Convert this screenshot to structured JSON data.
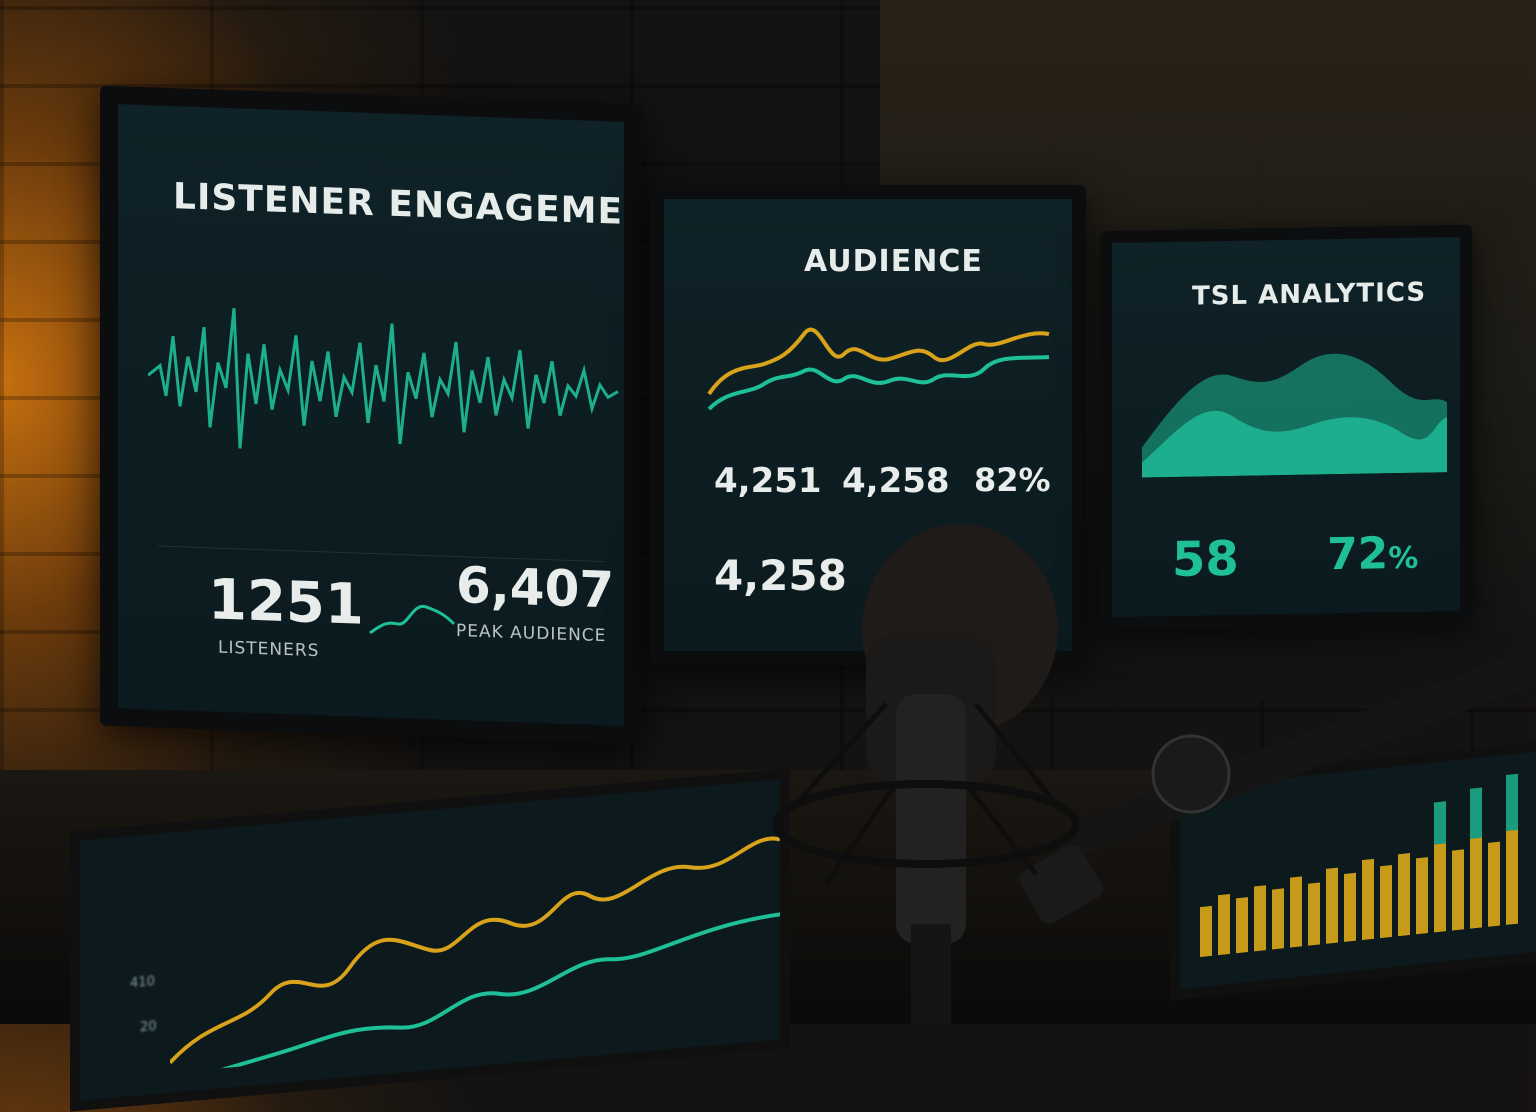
{
  "monitor_left": {
    "title": "LISTENER ENGAGEMENT",
    "listeners_value": "1251",
    "listeners_label": "LISTENERS",
    "peak_value": "6,407",
    "peak_label": "PEAK AUDIENCE"
  },
  "monitor_center": {
    "title": "AUDIENCE",
    "stat1": "4,251",
    "stat2": "4,258",
    "stat3": "82%",
    "stat4": "4,258"
  },
  "monitor_right": {
    "title": "TSL ANALYTICS",
    "stat1": "58",
    "stat2": "72",
    "stat2_unit": "%"
  },
  "bottom_left": {
    "tick_top": "410",
    "tick_bottom": "20"
  },
  "colors": {
    "teal": "#1fbf98",
    "gold": "#d9a21b",
    "screen_bg": "#0f2227",
    "glow": "#c7700f"
  },
  "icons": [
    "microphone-icon"
  ]
}
